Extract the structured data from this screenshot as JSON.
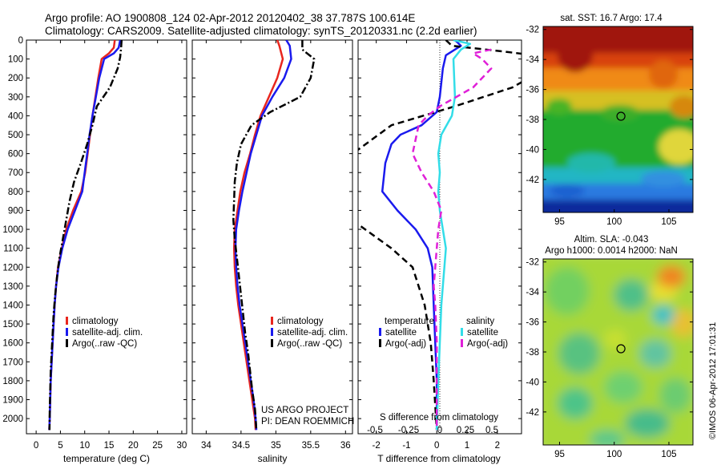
{
  "header": {
    "title_line1": "Argo profile: AO 1900808_124 02-Apr-2012 20120402_38 37.787S 100.614E",
    "title_line2": "Climatology: CARS2009. Satellite-adjusted climatology: synTS_20120331.nc (2.2d earlier)"
  },
  "colors": {
    "climatology": "#e8261e",
    "satellite": "#1a1aee",
    "argo": "#000000",
    "salinity_satellite": "#33dde8",
    "salinity_argo": "#e020d8"
  },
  "chart_data": [
    {
      "type": "line",
      "xlabel": "temperature (deg C)",
      "ylabel": "",
      "xlim": [
        -2,
        31
      ],
      "ylim": [
        2080,
        0
      ],
      "x_ticks": [
        0,
        5,
        10,
        15,
        20,
        25,
        30
      ],
      "y_ticks": [
        0,
        100,
        200,
        300,
        400,
        500,
        600,
        700,
        800,
        900,
        1000,
        1100,
        1200,
        1300,
        1400,
        1500,
        1600,
        1700,
        1800,
        1900,
        2000
      ],
      "legend": [
        "climatology",
        "satellite-adj. clim.",
        "Argo(..raw -QC)"
      ],
      "legend_position": "lower-right",
      "series": [
        {
          "name": "climatology",
          "points": [
            [
              16.2,
              0
            ],
            [
              16,
              40
            ],
            [
              15,
              70
            ],
            [
              13.5,
              100
            ],
            [
              12.8,
              200
            ],
            [
              12.2,
              300
            ],
            [
              11.6,
              400
            ],
            [
              11.1,
              500
            ],
            [
              10.6,
              600
            ],
            [
              10.1,
              700
            ],
            [
              9.3,
              800
            ],
            [
              7.6,
              900
            ],
            [
              6.2,
              1000
            ],
            [
              5.3,
              1100
            ],
            [
              4.5,
              1200
            ],
            [
              4.1,
              1300
            ],
            [
              3.8,
              1400
            ],
            [
              3.6,
              1500
            ],
            [
              3.4,
              1600
            ],
            [
              3.2,
              1700
            ],
            [
              3,
              1800
            ],
            [
              2.9,
              1900
            ],
            [
              2.8,
              2000
            ],
            [
              2.7,
              2060
            ]
          ]
        },
        {
          "name": "satellite-adj. clim.",
          "points": [
            [
              17.3,
              0
            ],
            [
              17,
              40
            ],
            [
              16,
              70
            ],
            [
              14,
              100
            ],
            [
              13,
              200
            ],
            [
              12.3,
              300
            ],
            [
              11.6,
              400
            ],
            [
              11,
              500
            ],
            [
              10.5,
              600
            ],
            [
              10,
              700
            ],
            [
              9.5,
              800
            ],
            [
              8,
              900
            ],
            [
              6.5,
              1000
            ],
            [
              5.4,
              1100
            ],
            [
              4.6,
              1200
            ],
            [
              4.1,
              1300
            ],
            [
              3.8,
              1400
            ],
            [
              3.6,
              1500
            ],
            [
              3.4,
              1600
            ],
            [
              3.2,
              1700
            ],
            [
              3,
              1800
            ],
            [
              2.9,
              1900
            ],
            [
              2.8,
              2000
            ],
            [
              2.7,
              2060
            ]
          ]
        },
        {
          "name": "Argo(..raw -QC)",
          "points": [
            [
              17.6,
              0
            ],
            [
              17.5,
              40
            ],
            [
              17.3,
              90
            ],
            [
              16.8,
              150
            ],
            [
              15.2,
              250
            ],
            [
              12.5,
              350
            ],
            [
              11.6,
              450
            ],
            [
              10.5,
              550
            ],
            [
              9.2,
              650
            ],
            [
              7.8,
              750
            ],
            [
              6.9,
              850
            ],
            [
              6.2,
              950
            ],
            [
              5.5,
              1050
            ],
            [
              4.8,
              1150
            ],
            [
              4.3,
              1250
            ],
            [
              3.9,
              1350
            ],
            [
              3.6,
              1450
            ],
            [
              3.4,
              1550
            ],
            [
              3.2,
              1650
            ],
            [
              3,
              1750
            ],
            [
              2.9,
              1850
            ],
            [
              2.8,
              1950
            ],
            [
              2.75,
              2060
            ]
          ]
        }
      ]
    },
    {
      "type": "line",
      "xlabel": "salinity",
      "ylabel": "",
      "xlim": [
        33.8,
        36.1
      ],
      "ylim": [
        2080,
        0
      ],
      "x_ticks": [
        34,
        34.5,
        35,
        35.5,
        36
      ],
      "legend": [
        "climatology",
        "satellite-adj. clim.",
        "Argo(..raw -QC)"
      ],
      "legend_position": "lower-right",
      "annotations": [
        "US ARGO PROJECT",
        "PI: DEAN ROEMMICH"
      ],
      "series": [
        {
          "name": "climatology",
          "points": [
            [
              35.02,
              0
            ],
            [
              35.05,
              30
            ],
            [
              35.1,
              100
            ],
            [
              35.02,
              200
            ],
            [
              34.9,
              300
            ],
            [
              34.78,
              400
            ],
            [
              34.7,
              500
            ],
            [
              34.63,
              600
            ],
            [
              34.55,
              700
            ],
            [
              34.49,
              800
            ],
            [
              34.45,
              900
            ],
            [
              34.41,
              1000
            ],
            [
              34.4,
              1100
            ],
            [
              34.41,
              1200
            ],
            [
              34.43,
              1300
            ],
            [
              34.46,
              1400
            ],
            [
              34.5,
              1500
            ],
            [
              34.54,
              1600
            ],
            [
              34.58,
              1700
            ],
            [
              34.62,
              1800
            ],
            [
              34.66,
              1900
            ],
            [
              34.7,
              2000
            ],
            [
              34.71,
              2060
            ]
          ]
        },
        {
          "name": "satellite-adj. clim.",
          "points": [
            [
              35.15,
              0
            ],
            [
              35.2,
              30
            ],
            [
              35.22,
              100
            ],
            [
              35.12,
              200
            ],
            [
              34.95,
              300
            ],
            [
              34.8,
              400
            ],
            [
              34.72,
              500
            ],
            [
              34.64,
              600
            ],
            [
              34.58,
              700
            ],
            [
              34.52,
              800
            ],
            [
              34.47,
              900
            ],
            [
              34.43,
              1000
            ],
            [
              34.42,
              1100
            ],
            [
              34.43,
              1200
            ],
            [
              34.45,
              1300
            ],
            [
              34.48,
              1400
            ],
            [
              34.52,
              1500
            ],
            [
              34.56,
              1600
            ],
            [
              34.6,
              1700
            ],
            [
              34.64,
              1800
            ],
            [
              34.68,
              1900
            ],
            [
              34.71,
              2000
            ],
            [
              34.72,
              2060
            ]
          ]
        },
        {
          "name": "Argo(..raw -QC)",
          "points": [
            [
              35.38,
              0
            ],
            [
              35.38,
              50
            ],
            [
              35.55,
              100
            ],
            [
              35.5,
              200
            ],
            [
              35.35,
              300
            ],
            [
              34.92,
              380
            ],
            [
              34.65,
              450
            ],
            [
              34.5,
              550
            ],
            [
              34.44,
              650
            ],
            [
              34.41,
              750
            ],
            [
              34.4,
              850
            ],
            [
              34.39,
              950
            ],
            [
              34.41,
              1050
            ],
            [
              34.44,
              1150
            ],
            [
              34.47,
              1250
            ],
            [
              34.5,
              1350
            ],
            [
              34.53,
              1450
            ],
            [
              34.56,
              1550
            ],
            [
              34.6,
              1650
            ],
            [
              34.63,
              1750
            ],
            [
              34.66,
              1850
            ],
            [
              34.7,
              1950
            ],
            [
              34.72,
              2060
            ]
          ]
        }
      ]
    },
    {
      "type": "line",
      "xlabel": "T difference from climatology",
      "xlabel_top": "S difference from climatology",
      "ylabel": "",
      "xlim": [
        -2.6,
        2.8
      ],
      "ylim": [
        2080,
        0
      ],
      "x_ticks": [
        -2,
        -1,
        0,
        1,
        2
      ],
      "x_ticks_top": [
        "-0.5",
        "-0.25",
        "0",
        "0.25",
        "0.5"
      ],
      "legend_headers": [
        "temperature",
        "salinity"
      ],
      "legend": [
        "satellite",
        "Argo(-adj)",
        "satellite",
        "Argo(-adj)"
      ],
      "legend_position": "lower-center",
      "series": [
        {
          "name": "temperature satellite",
          "points": [
            [
              0.6,
              0
            ],
            [
              0.8,
              30
            ],
            [
              0.3,
              80
            ],
            [
              0.2,
              150
            ],
            [
              0.1,
              300
            ],
            [
              0,
              380
            ],
            [
              -0.5,
              450
            ],
            [
              -1.2,
              500
            ],
            [
              -1.5,
              550
            ],
            [
              -1.7,
              650
            ],
            [
              -1.8,
              800
            ],
            [
              -1.3,
              900
            ],
            [
              -0.7,
              1000
            ],
            [
              -0.3,
              1100
            ],
            [
              -0.15,
              1200
            ],
            [
              -0.1,
              1400
            ],
            [
              -0.05,
              1600
            ],
            [
              0,
              1800
            ],
            [
              0,
              2060
            ]
          ]
        },
        {
          "name": "temperature Argo(-adj)",
          "points": [
            [
              0.3,
              0
            ],
            [
              0.5,
              30
            ],
            [
              2.2,
              60
            ],
            [
              3.2,
              80
            ],
            [
              3.6,
              150
            ],
            [
              2.5,
              250
            ],
            [
              0.6,
              350
            ],
            [
              -1.5,
              450
            ],
            [
              -3.2,
              650
            ],
            [
              -3.6,
              800
            ],
            [
              -2.8,
              950
            ],
            [
              -1.5,
              1100
            ],
            [
              -0.8,
              1200
            ],
            [
              -0.4,
              1400
            ],
            [
              -0.2,
              1600
            ],
            [
              -0.1,
              1800
            ],
            [
              0,
              2060
            ]
          ]
        },
        {
          "name": "salinity satellite",
          "points": [
            [
              0.55,
              0
            ],
            [
              1.1,
              20
            ],
            [
              0.8,
              50
            ],
            [
              0.55,
              100
            ],
            [
              0.6,
              300
            ],
            [
              0.5,
              400
            ],
            [
              0.15,
              500
            ],
            [
              0.05,
              600
            ],
            [
              0.1,
              700
            ],
            [
              0.05,
              800
            ],
            [
              0.1,
              900
            ],
            [
              0.2,
              1000
            ],
            [
              0.3,
              1100
            ],
            [
              0.25,
              1200
            ],
            [
              0.2,
              1300
            ],
            [
              0.15,
              1400
            ],
            [
              0.1,
              1600
            ],
            [
              0.05,
              1800
            ],
            [
              0,
              2060
            ]
          ]
        },
        {
          "name": "salinity Argo(-adj)",
          "points": [
            [
              1.8,
              50
            ],
            [
              1.2,
              70
            ],
            [
              1.5,
              100
            ],
            [
              1.8,
              150
            ],
            [
              1.2,
              250
            ],
            [
              0.1,
              350
            ],
            [
              -0.3,
              400
            ],
            [
              -0.6,
              450
            ],
            [
              -0.8,
              600
            ],
            [
              -0.5,
              700
            ],
            [
              -0.1,
              800
            ],
            [
              0.15,
              900
            ],
            [
              0.05,
              1000
            ],
            [
              0,
              1100
            ],
            [
              -0.05,
              1200
            ],
            [
              -0.1,
              1300
            ],
            [
              -0.05,
              1400
            ],
            [
              0,
              1600
            ],
            [
              0,
              2060
            ]
          ]
        }
      ]
    },
    {
      "type": "heatmap",
      "title": "sat. SST: 16.7 Argo: 17.4",
      "x_ticks": [
        95,
        100,
        105
      ],
      "y_ticks": [
        -32,
        -34,
        -36,
        -38,
        -40,
        -42
      ],
      "xlim": [
        93.5,
        107.2
      ],
      "ylim": [
        -44.2,
        -31.8
      ],
      "marker": {
        "lon": 100.614,
        "lat": -37.787
      }
    },
    {
      "type": "heatmap",
      "title_line1": "Altim. SLA: -0.043",
      "title_line2": "Argo h1000: 0.0014 h2000: NaN",
      "x_ticks": [
        95,
        100,
        105
      ],
      "y_ticks": [
        -32,
        -34,
        -36,
        -38,
        -40,
        -42
      ],
      "xlim": [
        93.5,
        107.2
      ],
      "ylim": [
        -44.2,
        -31.8
      ],
      "marker": {
        "lon": 100.614,
        "lat": -37.787
      }
    }
  ],
  "watermark": "©IMOS 06-Apr-2012 17:01:31"
}
